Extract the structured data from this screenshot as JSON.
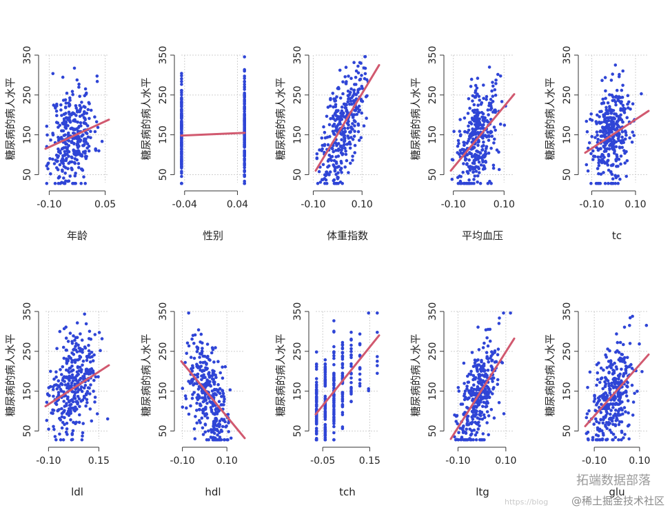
{
  "ylabel": "糖尿病的病人水平",
  "ylim": [
    30,
    350
  ],
  "yticks": [
    50,
    150,
    250,
    350
  ],
  "colors": {
    "points": "#2f45d6",
    "fit": "#d1596f",
    "grid": "#cfcfcf",
    "axis": "#333333"
  },
  "watermark": {
    "brand": "拓端数据部落",
    "site": "@稀土掘金技术社区",
    "url": "https://blog"
  },
  "chart_data": [
    {
      "type": "scatter",
      "xlabel": "年龄",
      "xlim": [
        -0.11,
        0.06
      ],
      "xticks": [
        -0.1,
        0.05
      ],
      "xtick_labels": [
        "-0.10",
        "0.05"
      ],
      "fit": {
        "x": [
          -0.11,
          0.06
        ],
        "y": [
          115,
          188
        ]
      },
      "seed": 11,
      "dist": "cont",
      "slope_hint": 0.2
    },
    {
      "type": "scatter",
      "xlabel": "性别",
      "xlim": [
        -0.045,
        0.051
      ],
      "xticks": [
        -0.04,
        0.04
      ],
      "xtick_labels": [
        "-0.04",
        "0.04"
      ],
      "fit": {
        "x": [
          -0.045,
          0.051
        ],
        "y": [
          148,
          155
        ]
      },
      "seed": 23,
      "dist": "binary",
      "levels": [
        -0.0446,
        0.0507
      ],
      "slope_hint": 0.0
    },
    {
      "type": "scatter",
      "xlabel": "体重指数",
      "xlim": [
        -0.09,
        0.17
      ],
      "xticks": [
        -0.1,
        0.1
      ],
      "xtick_labels": [
        "-0.10",
        "0.10"
      ],
      "fit": {
        "x": [
          -0.09,
          0.17
        ],
        "y": [
          60,
          325
        ]
      },
      "seed": 37,
      "dist": "cont",
      "slope_hint": 0.6
    },
    {
      "type": "scatter",
      "xlabel": "平均血压",
      "xlim": [
        -0.11,
        0.14
      ],
      "xticks": [
        -0.1,
        0.1
      ],
      "xtick_labels": [
        "-0.10",
        "0.10"
      ],
      "fit": {
        "x": [
          -0.11,
          0.14
        ],
        "y": [
          60,
          252
        ]
      },
      "seed": 41,
      "dist": "cont",
      "slope_hint": 0.45
    },
    {
      "type": "scatter",
      "xlabel": "tc",
      "xlim": [
        -0.13,
        0.16
      ],
      "xticks": [
        -0.1,
        0.1
      ],
      "xtick_labels": [
        "-0.10",
        "0.10"
      ],
      "fit": {
        "x": [
          -0.13,
          0.16
        ],
        "y": [
          105,
          210
        ]
      },
      "seed": 53,
      "dist": "cont",
      "slope_hint": 0.2
    },
    {
      "type": "scatter",
      "xlabel": "ldl",
      "xlim": [
        -0.115,
        0.2
      ],
      "xticks": [
        -0.1,
        0.15
      ],
      "xtick_labels": [
        "-0.10",
        "0.15"
      ],
      "fit": {
        "x": [
          -0.115,
          0.2
        ],
        "y": [
          112,
          215
        ]
      },
      "seed": 67,
      "dist": "cont",
      "slope_hint": 0.2
    },
    {
      "type": "scatter",
      "xlabel": "hdl",
      "xlim": [
        -0.105,
        0.18
      ],
      "xticks": [
        -0.1,
        0.1
      ],
      "xtick_labels": [
        "-0.10",
        "0.10"
      ],
      "fit": {
        "x": [
          -0.105,
          0.18
        ],
        "y": [
          225,
          32
        ]
      },
      "seed": 79,
      "dist": "cont",
      "slope_hint": -0.4
    },
    {
      "type": "scatter",
      "xlabel": "tch",
      "xlim": [
        -0.08,
        0.19
      ],
      "xticks": [
        -0.05,
        0.15
      ],
      "xtick_labels": [
        "-0.05",
        "0.15"
      ],
      "fit": {
        "x": [
          -0.08,
          0.19
        ],
        "y": [
          92,
          290
        ]
      },
      "seed": 83,
      "dist": "discrete",
      "slope_hint": 0.4
    },
    {
      "type": "scatter",
      "xlabel": "ltg",
      "xlim": [
        -0.13,
        0.135
      ],
      "xticks": [
        -0.1,
        0.1
      ],
      "xtick_labels": [
        "-0.10",
        "0.10"
      ],
      "fit": {
        "x": [
          -0.13,
          0.135
        ],
        "y": [
          30,
          282
        ]
      },
      "seed": 97,
      "dist": "cont",
      "slope_hint": 0.55
    },
    {
      "type": "scatter",
      "xlabel": "glu",
      "xlim": [
        -0.14,
        0.14
      ],
      "xticks": [
        -0.1,
        0.1
      ],
      "xtick_labels": [
        "-0.10",
        "0.10"
      ],
      "fit": {
        "x": [
          -0.14,
          0.14
        ],
        "y": [
          62,
          242
        ]
      },
      "seed": 101,
      "dist": "cont",
      "slope_hint": 0.4
    }
  ]
}
